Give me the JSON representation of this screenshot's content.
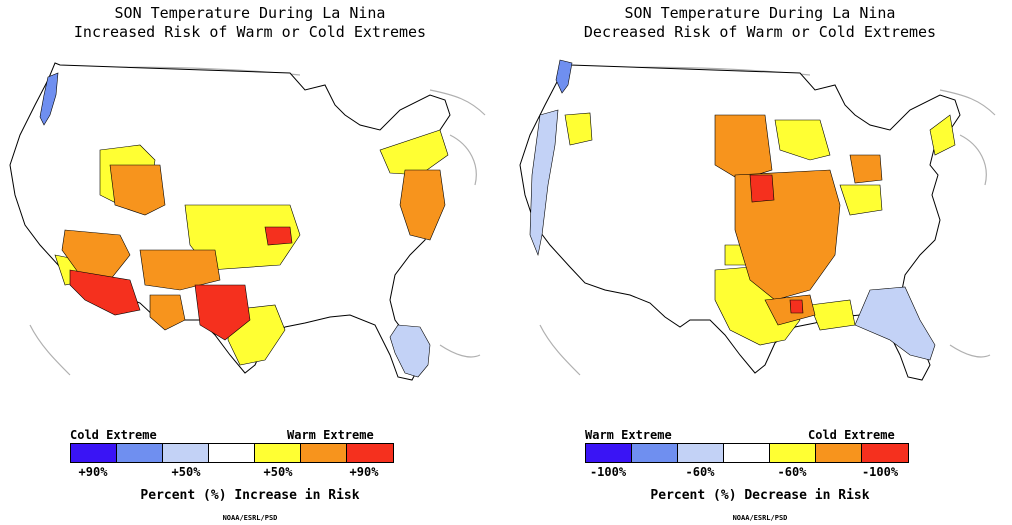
{
  "left_panel": {
    "title_line1": "SON Temperature During La Nina",
    "title_line2": "Increased Risk of Warm or Cold Extremes",
    "legend_left_heading": "Cold Extreme",
    "legend_right_heading": "Warm Extreme",
    "ticks": [
      "+90%",
      "+50%",
      "+50%",
      "+90%"
    ],
    "axis_label": "Percent (%) Increase in Risk",
    "credit": "NOAA/ESRL/PSD",
    "swatch_colors": [
      "#3a14f5",
      "#6f8ff0",
      "#c3d2f6",
      "#ffffff",
      "#ffff33",
      "#f7941d",
      "#f5301e"
    ]
  },
  "right_panel": {
    "title_line1": "SON Temperature During La Nina",
    "title_line2": "Decreased Risk of Warm or Cold Extremes",
    "legend_left_heading": "Warm Extreme",
    "legend_right_heading": "Cold Extreme",
    "ticks": [
      "-100%",
      "-60%",
      "-60%",
      "-100%"
    ],
    "axis_label": "Percent (%) Decrease in Risk",
    "credit": "NOAA/ESRL/PSD",
    "swatch_colors": [
      "#3a14f5",
      "#6f8ff0",
      "#c3d2f6",
      "#ffffff",
      "#ffff33",
      "#f7941d",
      "#f5301e"
    ]
  }
}
